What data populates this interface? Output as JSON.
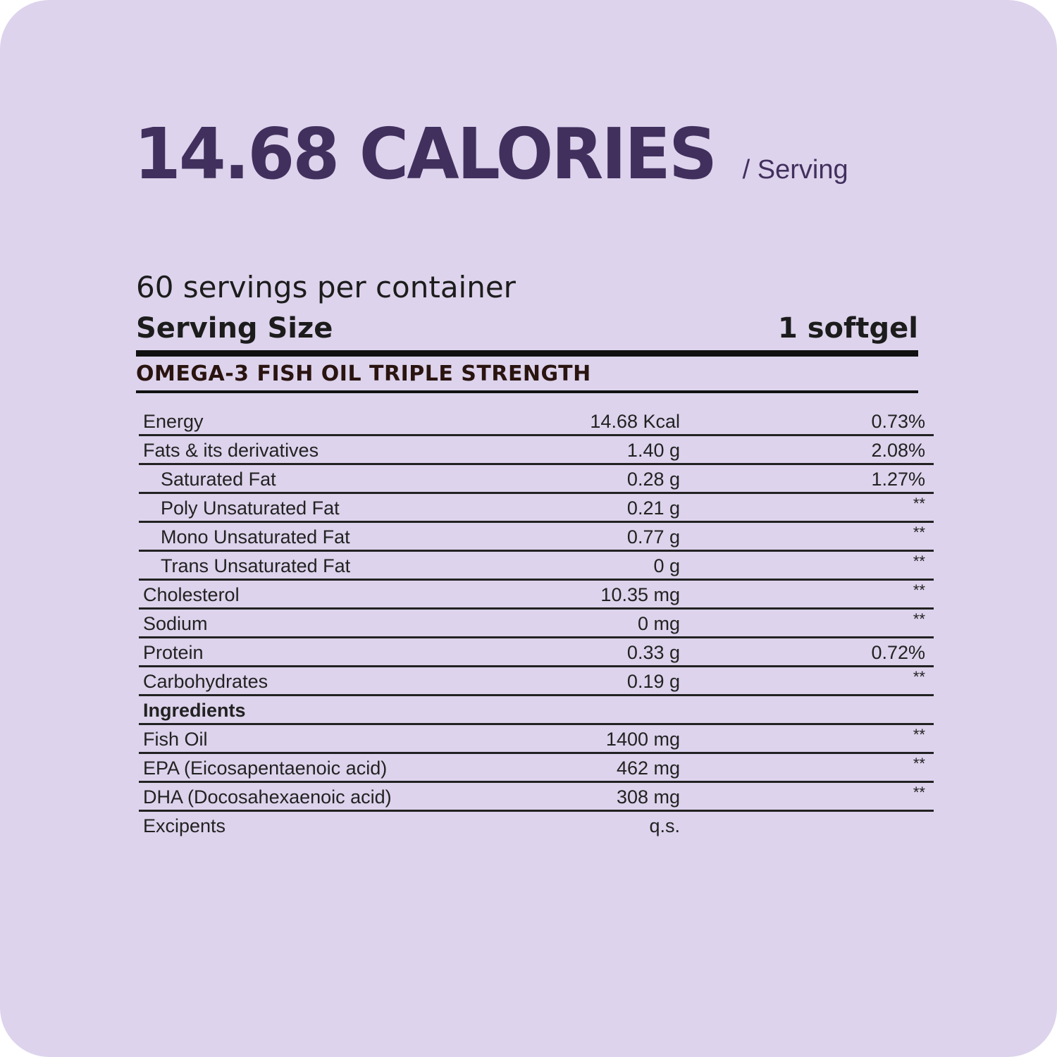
{
  "headline": {
    "calories": "14.68 CALORIES",
    "per_serving": "/ Serving"
  },
  "servings_per_container": "60 servings per container",
  "serving_size": {
    "label": "Serving Size",
    "value": "1 softgel"
  },
  "product_name": "OMEGA-3 FISH OIL TRIPLE STRENGTH",
  "colors": {
    "background": "#ddd3ec",
    "headline": "#41305e",
    "text": "#1c1c1c"
  },
  "rows": [
    {
      "name": "Energy",
      "amount": "14.68 Kcal",
      "dv": "0.73%"
    },
    {
      "name": "Fats & its derivatives",
      "amount": "1.40 g",
      "dv": "2.08%"
    },
    {
      "name": "Saturated Fat",
      "amount": "0.28 g",
      "dv": "1.27%"
    },
    {
      "name": "Poly Unsaturated Fat",
      "amount": "0.21 g",
      "dv": "**"
    },
    {
      "name": "Mono Unsaturated Fat",
      "amount": "0.77 g",
      "dv": "**"
    },
    {
      "name": "Trans Unsaturated Fat",
      "amount": "0 g",
      "dv": "**"
    },
    {
      "name": "Cholesterol",
      "amount": "10.35 mg",
      "dv": "**"
    },
    {
      "name": "Sodium",
      "amount": "0 mg",
      "dv": "**"
    },
    {
      "name": "Protein",
      "amount": "0.33 g",
      "dv": "0.72%"
    },
    {
      "name": "Carbohydrates",
      "amount": "0.19 g",
      "dv": "**"
    },
    {
      "name": "Ingredients",
      "amount": "",
      "dv": ""
    },
    {
      "name": "Fish Oil",
      "amount": "1400 mg",
      "dv": "**"
    },
    {
      "name": "EPA (Eicosapentaenoic acid)",
      "amount": "462 mg",
      "dv": "**"
    },
    {
      "name": "DHA (Docosahexaenoic acid)",
      "amount": "308 mg",
      "dv": "**"
    },
    {
      "name": "Excipents",
      "amount": "q.s.",
      "dv": ""
    }
  ]
}
